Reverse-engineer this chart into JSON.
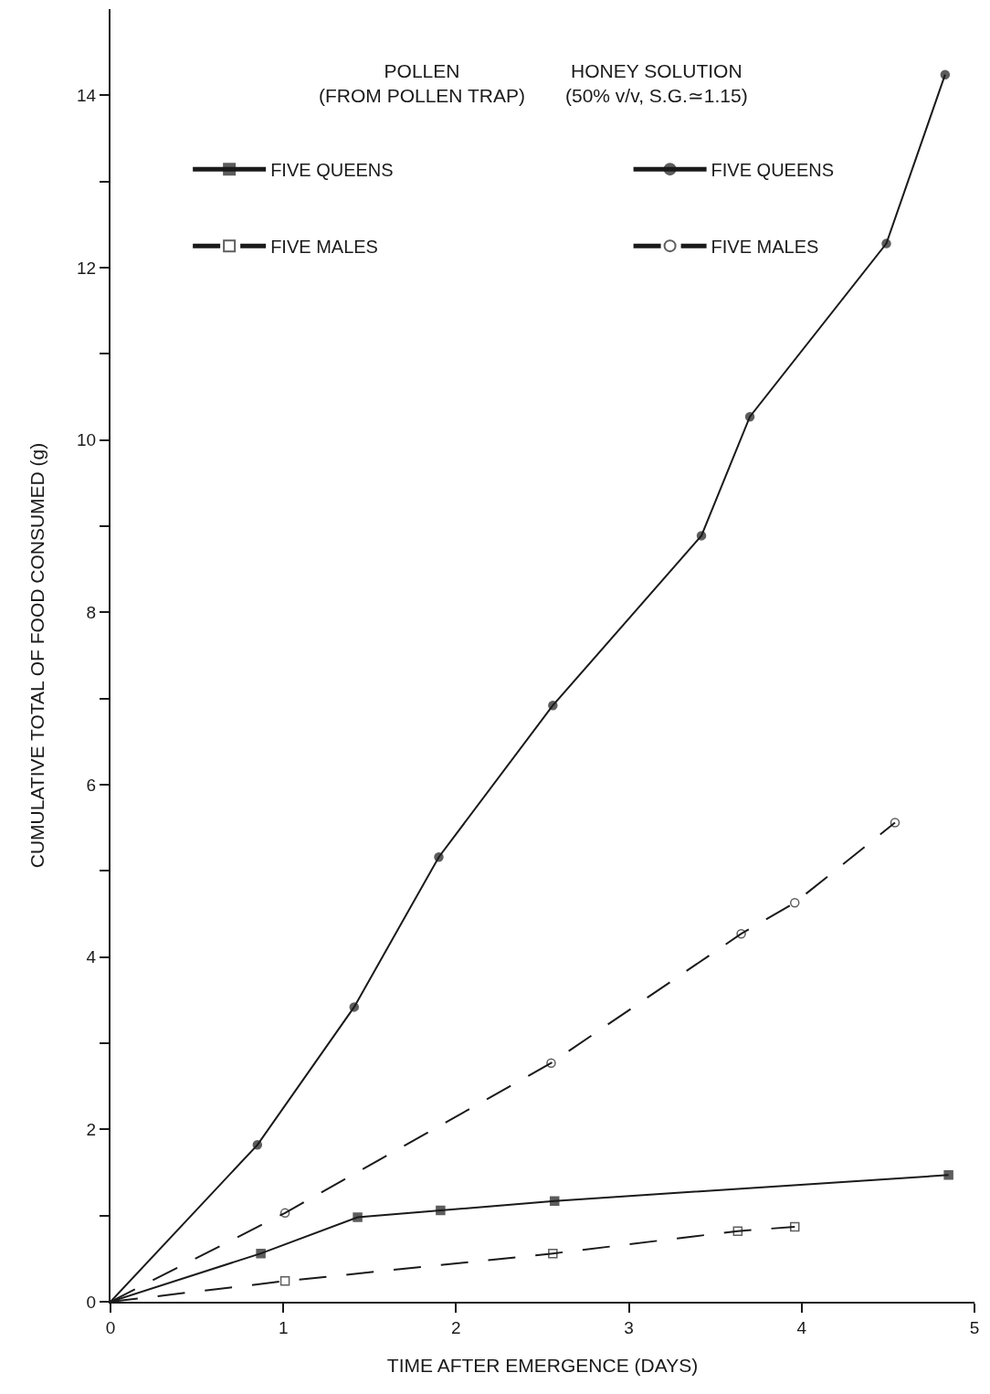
{
  "chart_data": {
    "type": "line",
    "xlabel": "TIME AFTER EMERGENCE (DAYS)",
    "ylabel": "CUMULATIVE TOTAL OF FOOD CONSUMED (g)",
    "annotations": [
      "POLLEN\n(FROM POLLEN TRAP)",
      "HONEY SOLUTION\n(50% v/v, S.G.≃1.15)"
    ],
    "series": [
      {
        "name": "FIVE QUEENS",
        "color": "#1a1a1a",
        "marker": "square",
        "line_style": "solid",
        "x": [
          0,
          0.87,
          1.43,
          1.91,
          2.57,
          4.85
        ],
        "values": [
          0,
          0.56,
          0.98,
          1.06,
          1.17,
          1.47
        ]
      },
      {
        "name": "FIVE MALES",
        "color": "#1a1a1a",
        "marker": "square-open",
        "line_style": "dashed",
        "x": [
          0,
          1.01,
          2.56,
          3.63,
          3.96
        ],
        "values": [
          0,
          0.24,
          0.56,
          0.82,
          0.87
        ]
      },
      {
        "name": "FIVE QUEENS",
        "color": "#1a1a1a",
        "marker": "circle",
        "line_style": "solid",
        "x": [
          0,
          0.85,
          1.41,
          1.9,
          2.56,
          3.42,
          3.7,
          4.49,
          4.83
        ],
        "values": [
          0,
          1.82,
          3.42,
          5.16,
          6.92,
          8.89,
          10.27,
          12.28,
          14.24
        ]
      },
      {
        "name": "FIVE MALES",
        "color": "#1a1a1a",
        "marker": "circle-open",
        "line_style": "dashed",
        "x": [
          0,
          1.01,
          2.55,
          3.65,
          3.96,
          4.54
        ],
        "values": [
          0,
          1.03,
          2.77,
          4.27,
          4.63,
          5.56
        ]
      }
    ],
    "xlim": [
      0,
      5
    ],
    "xticks": [
      0,
      1,
      2,
      3,
      4,
      5
    ],
    "ylim": [
      0,
      15
    ],
    "yticks": [
      0,
      {
        "value": 1,
        "label": null
      },
      2,
      {
        "value": 3,
        "label": null
      },
      4,
      {
        "value": 5,
        "label": null
      },
      6,
      {
        "value": 7,
        "label": null
      },
      8,
      {
        "value": 9,
        "label": null
      },
      10,
      {
        "value": 11,
        "label": null
      },
      12,
      {
        "value": 13,
        "label": null
      },
      14
    ],
    "legend": "top left"
  }
}
